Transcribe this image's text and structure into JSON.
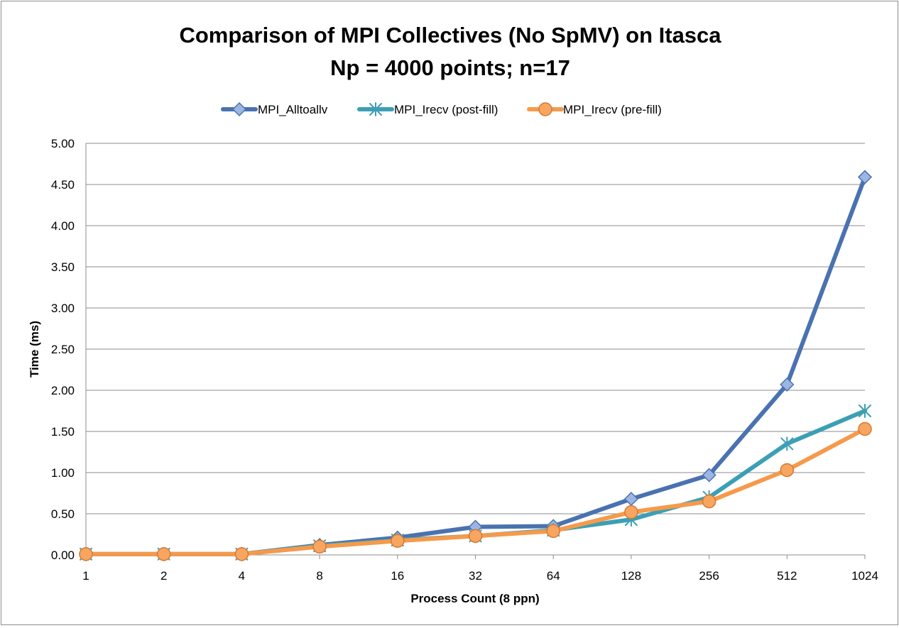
{
  "chart_data": {
    "type": "line",
    "title": "Comparison of MPI Collectives (No SpMV) on Itasca",
    "subtitle": "Np = 4000 points; n=17",
    "xlabel": "Process Count (8 ppn)",
    "ylabel": "Time (ms)",
    "categories": [
      "1",
      "2",
      "4",
      "8",
      "16",
      "32",
      "64",
      "128",
      "256",
      "512",
      "1024"
    ],
    "y_ticks": [
      "0.00",
      "0.50",
      "1.00",
      "1.50",
      "2.00",
      "2.50",
      "3.00",
      "3.50",
      "4.00",
      "4.50",
      "5.00"
    ],
    "ylim": [
      0,
      5
    ],
    "grid": true,
    "legend_position": "top",
    "series": [
      {
        "name": "MPI_Alltoallv",
        "color": "#4a72b0",
        "marker": "diamond",
        "values": [
          0.01,
          0.01,
          0.01,
          0.12,
          0.21,
          0.34,
          0.35,
          0.68,
          0.97,
          2.07,
          4.59
        ]
      },
      {
        "name": "MPI_Irecv (post-fill)",
        "color": "#3c9fb4",
        "marker": "asterisk",
        "values": [
          0.01,
          0.01,
          0.01,
          0.11,
          0.18,
          0.23,
          0.3,
          0.43,
          0.7,
          1.35,
          1.75
        ]
      },
      {
        "name": "MPI_Irecv (pre-fill)",
        "color": "#f59a4b",
        "marker": "circle",
        "values": [
          0.01,
          0.01,
          0.01,
          0.1,
          0.17,
          0.23,
          0.29,
          0.52,
          0.65,
          1.03,
          1.53
        ]
      }
    ]
  }
}
